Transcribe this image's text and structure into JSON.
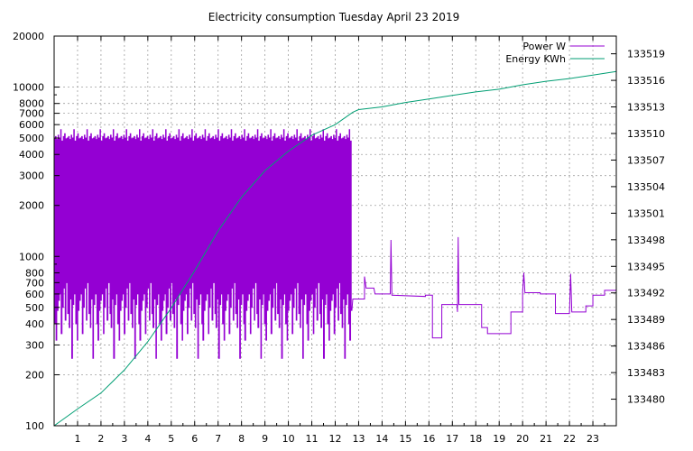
{
  "chart_data": {
    "type": "line",
    "title": "Electricity consumption Tuesday April 23 2019",
    "xlabel": "",
    "ylabel": "",
    "y2label": "",
    "xlim": [
      0,
      24
    ],
    "ylim": [
      100,
      20000
    ],
    "y_scale": "log",
    "y2lim": [
      133477,
      133521
    ],
    "grid": true,
    "legend_position": "top-right",
    "x_ticks": [
      "1",
      "2",
      "3",
      "4",
      "5",
      "6",
      "7",
      "8",
      "9",
      "10",
      "11",
      "12",
      "13",
      "14",
      "15",
      "16",
      "17",
      "18",
      "19",
      "20",
      "21",
      "22",
      "23"
    ],
    "y_ticks": [
      {
        "value": 100,
        "label": "100"
      },
      {
        "value": 200,
        "label": "200"
      },
      {
        "value": 300,
        "label": "300"
      },
      {
        "value": 400,
        "label": "400"
      },
      {
        "value": 500,
        "label": "500"
      },
      {
        "value": 600,
        "label": "600"
      },
      {
        "value": 700,
        "label": "700"
      },
      {
        "value": 800,
        "label": "800"
      },
      {
        "value": 1000,
        "label": "1000"
      },
      {
        "value": 2000,
        "label": "2000"
      },
      {
        "value": 3000,
        "label": "3000"
      },
      {
        "value": 4000,
        "label": "4000"
      },
      {
        "value": 5000,
        "label": "5000"
      },
      {
        "value": 6000,
        "label": "6000"
      },
      {
        "value": 7000,
        "label": "7000"
      },
      {
        "value": 8000,
        "label": "8000"
      },
      {
        "value": 10000,
        "label": "10000"
      },
      {
        "value": 20000,
        "label": "20000"
      }
    ],
    "y2_ticks": [
      "133480",
      "133483",
      "133486",
      "133489",
      "133492",
      "133495",
      "133498",
      "133501",
      "133504",
      "133507",
      "133510",
      "133513",
      "133516",
      "133519"
    ],
    "series": [
      {
        "name": "Power W",
        "axis": "left",
        "color": "#9400d3",
        "cycling": {
          "x_range": [
            0,
            12.75
          ],
          "high_values": [
            5000,
            5100,
            4900,
            5200,
            5000,
            5600,
            4800,
            5100,
            5300,
            4950
          ],
          "low_values": [
            400,
            320,
            480,
            550,
            600,
            350,
            500,
            650,
            420,
            700,
            460,
            380,
            560,
            250,
            520,
            600
          ]
        },
        "segments": [
          [
            12.75,
            560
          ],
          [
            13.25,
            560
          ],
          [
            13.25,
            760
          ],
          [
            13.32,
            650
          ],
          [
            13.65,
            650
          ],
          [
            13.7,
            600
          ],
          [
            14.35,
            600
          ],
          [
            14.38,
            1250
          ],
          [
            14.42,
            590
          ],
          [
            15.85,
            580
          ],
          [
            15.85,
            590
          ],
          [
            16.15,
            590
          ],
          [
            16.15,
            330
          ],
          [
            16.55,
            330
          ],
          [
            16.55,
            520
          ],
          [
            17.2,
            520
          ],
          [
            17.22,
            470
          ],
          [
            17.25,
            1300
          ],
          [
            17.28,
            520
          ],
          [
            18.25,
            520
          ],
          [
            18.25,
            380
          ],
          [
            18.5,
            380
          ],
          [
            18.5,
            350
          ],
          [
            19.5,
            350
          ],
          [
            19.5,
            470
          ],
          [
            20.0,
            470
          ],
          [
            20.0,
            610
          ],
          [
            20.05,
            800
          ],
          [
            20.1,
            610
          ],
          [
            20.75,
            610
          ],
          [
            20.75,
            600
          ],
          [
            21.4,
            600
          ],
          [
            21.4,
            460
          ],
          [
            22.0,
            460
          ],
          [
            22.05,
            790
          ],
          [
            22.1,
            470
          ],
          [
            22.7,
            470
          ],
          [
            22.7,
            510
          ],
          [
            23.0,
            510
          ],
          [
            23.0,
            590
          ],
          [
            23.5,
            590
          ],
          [
            23.5,
            630
          ],
          [
            24.0,
            630
          ]
        ]
      },
      {
        "name": "Energy KWh",
        "axis": "right",
        "color": "#009e73",
        "points": [
          [
            0,
            133477.0
          ],
          [
            1,
            133478.9
          ],
          [
            2,
            133480.7
          ],
          [
            3,
            133483.3
          ],
          [
            4,
            133486.5
          ],
          [
            5,
            133490.3
          ],
          [
            6,
            133494.5
          ],
          [
            7,
            133499.0
          ],
          [
            8,
            133502.8
          ],
          [
            9,
            133505.8
          ],
          [
            10,
            133508.0
          ],
          [
            11,
            133509.8
          ],
          [
            12,
            133511.0
          ],
          [
            12.75,
            133512.4
          ],
          [
            13,
            133512.7
          ],
          [
            14,
            133513.0
          ],
          [
            15,
            133513.5
          ],
          [
            16,
            133513.9
          ],
          [
            17,
            133514.3
          ],
          [
            18,
            133514.7
          ],
          [
            19,
            133515.0
          ],
          [
            20,
            133515.5
          ],
          [
            21,
            133515.9
          ],
          [
            22,
            133516.2
          ],
          [
            23,
            133516.6
          ],
          [
            24,
            133517.0
          ]
        ]
      }
    ]
  }
}
